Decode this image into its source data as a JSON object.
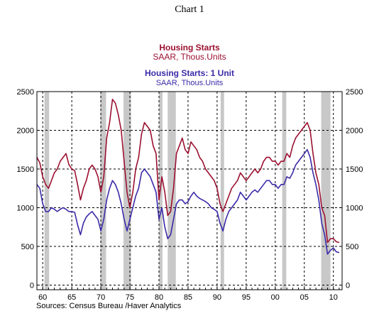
{
  "title": "Chart 1",
  "source": "Sources:  Census Bureau /Haver Analytics",
  "chart_data": {
    "type": "line",
    "x_tick_labels": [
      "60",
      "65",
      "70",
      "75",
      "80",
      "85",
      "90",
      "95",
      "00",
      "05",
      "10"
    ],
    "x_ticks": [
      1960,
      1965,
      1970,
      1975,
      1980,
      1985,
      1990,
      1995,
      2000,
      2005,
      2010
    ],
    "xlim": [
      1959.0,
      2011.5
    ],
    "y_ticks": [
      0,
      500,
      1000,
      1500,
      2000,
      2500
    ],
    "y_tick_labels": [
      "0",
      "500",
      "1000",
      "1500",
      "2000",
      "2500"
    ],
    "ylim": [
      -60,
      2500
    ],
    "grid": "dashed vertical lines at x ticks; dashed horizontal lines at y ticks",
    "legend_position": "top-center",
    "recession_shading": [
      [
        1960.3,
        1961.1
      ],
      [
        1969.9,
        1970.9
      ],
      [
        1973.9,
        1975.2
      ],
      [
        1980.0,
        1980.6
      ],
      [
        1981.5,
        1982.9
      ],
      [
        1990.6,
        1991.2
      ],
      [
        2001.2,
        2001.9
      ],
      [
        2007.9,
        2009.5
      ]
    ],
    "series": [
      {
        "name": "Housing Starts",
        "unit": "SAAR, Thous.Units",
        "color": "#9b1030",
        "x": [
          1959.0,
          1959.5,
          1960.0,
          1960.5,
          1961.0,
          1961.5,
          1962.0,
          1962.5,
          1963.0,
          1963.5,
          1964.0,
          1964.5,
          1965.0,
          1965.5,
          1966.0,
          1966.5,
          1967.0,
          1967.5,
          1968.0,
          1968.5,
          1969.0,
          1969.5,
          1970.0,
          1970.5,
          1971.0,
          1971.5,
          1972.0,
          1972.5,
          1973.0,
          1973.5,
          1974.0,
          1974.5,
          1975.0,
          1975.5,
          1976.0,
          1976.5,
          1977.0,
          1977.5,
          1978.0,
          1978.5,
          1979.0,
          1979.5,
          1980.0,
          1980.5,
          1981.0,
          1981.5,
          1982.0,
          1982.5,
          1983.0,
          1983.5,
          1984.0,
          1984.5,
          1985.0,
          1985.5,
          1986.0,
          1986.5,
          1987.0,
          1987.5,
          1988.0,
          1988.5,
          1989.0,
          1989.5,
          1990.0,
          1990.5,
          1991.0,
          1991.5,
          1992.0,
          1992.5,
          1993.0,
          1993.5,
          1994.0,
          1994.5,
          1995.0,
          1995.5,
          1996.0,
          1996.5,
          1997.0,
          1997.5,
          1998.0,
          1998.5,
          1999.0,
          1999.5,
          2000.0,
          2000.5,
          2001.0,
          2001.5,
          2002.0,
          2002.5,
          2003.0,
          2003.5,
          2004.0,
          2004.5,
          2005.0,
          2005.5,
          2006.0,
          2006.5,
          2007.0,
          2007.5,
          2008.0,
          2008.5,
          2009.0,
          2009.5,
          2010.0,
          2010.5,
          2011.0
        ],
        "values": [
          1650,
          1580,
          1400,
          1300,
          1250,
          1350,
          1450,
          1500,
          1600,
          1650,
          1700,
          1560,
          1500,
          1480,
          1300,
          1100,
          1250,
          1350,
          1500,
          1550,
          1500,
          1400,
          1200,
          1400,
          1900,
          2100,
          2400,
          2350,
          2200,
          2000,
          1600,
          1200,
          1000,
          1200,
          1500,
          1650,
          1950,
          2100,
          2050,
          2000,
          1800,
          1700,
          1100,
          1400,
          1200,
          900,
          950,
          1250,
          1700,
          1800,
          1900,
          1750,
          1700,
          1850,
          1800,
          1750,
          1650,
          1600,
          1500,
          1450,
          1400,
          1350,
          1250,
          1050,
          950,
          1050,
          1150,
          1250,
          1300,
          1350,
          1450,
          1400,
          1350,
          1400,
          1450,
          1500,
          1450,
          1500,
          1600,
          1650,
          1650,
          1600,
          1600,
          1550,
          1600,
          1600,
          1700,
          1650,
          1800,
          1900,
          1950,
          2000,
          2050,
          2100,
          2000,
          1700,
          1450,
          1300,
          1000,
          900,
          550,
          600,
          600,
          560,
          550
        ]
      },
      {
        "name": "Housing Starts: 1  Unit",
        "unit": "SAAR, Thous.Units",
        "color": "#3a2aa8",
        "x": [
          1959.0,
          1959.5,
          1960.0,
          1960.5,
          1961.0,
          1961.5,
          1962.0,
          1962.5,
          1963.0,
          1963.5,
          1964.0,
          1964.5,
          1965.0,
          1965.5,
          1966.0,
          1966.5,
          1967.0,
          1967.5,
          1968.0,
          1968.5,
          1969.0,
          1969.5,
          1970.0,
          1970.5,
          1971.0,
          1971.5,
          1972.0,
          1972.5,
          1973.0,
          1973.5,
          1974.0,
          1974.5,
          1975.0,
          1975.5,
          1976.0,
          1976.5,
          1977.0,
          1977.5,
          1978.0,
          1978.5,
          1979.0,
          1979.5,
          1980.0,
          1980.5,
          1981.0,
          1981.5,
          1982.0,
          1982.5,
          1983.0,
          1983.5,
          1984.0,
          1984.5,
          1985.0,
          1985.5,
          1986.0,
          1986.5,
          1987.0,
          1987.5,
          1988.0,
          1988.5,
          1989.0,
          1989.5,
          1990.0,
          1990.5,
          1991.0,
          1991.5,
          1992.0,
          1992.5,
          1993.0,
          1993.5,
          1994.0,
          1994.5,
          1995.0,
          1995.5,
          1996.0,
          1996.5,
          1997.0,
          1997.5,
          1998.0,
          1998.5,
          1999.0,
          1999.5,
          2000.0,
          2000.5,
          2001.0,
          2001.5,
          2002.0,
          2002.5,
          2003.0,
          2003.5,
          2004.0,
          2004.5,
          2005.0,
          2005.5,
          2006.0,
          2006.5,
          2007.0,
          2007.5,
          2008.0,
          2008.5,
          2009.0,
          2009.5,
          2010.0,
          2010.5,
          2011.0
        ],
        "values": [
          1300,
          1250,
          1050,
          950,
          950,
          1000,
          980,
          950,
          980,
          1000,
          980,
          950,
          950,
          940,
          780,
          650,
          800,
          880,
          920,
          950,
          900,
          850,
          700,
          850,
          1100,
          1250,
          1350,
          1300,
          1200,
          1050,
          850,
          700,
          850,
          1000,
          1150,
          1250,
          1450,
          1500,
          1450,
          1400,
          1300,
          1200,
          850,
          1000,
          750,
          600,
          650,
          850,
          1050,
          1100,
          1100,
          1050,
          1080,
          1150,
          1200,
          1150,
          1120,
          1100,
          1080,
          1050,
          1000,
          980,
          950,
          800,
          700,
          850,
          950,
          1000,
          1050,
          1100,
          1200,
          1150,
          1100,
          1150,
          1200,
          1230,
          1200,
          1250,
          1300,
          1350,
          1350,
          1300,
          1300,
          1250,
          1300,
          1300,
          1400,
          1380,
          1450,
          1550,
          1600,
          1650,
          1700,
          1750,
          1650,
          1450,
          1300,
          1100,
          800,
          650,
          400,
          450,
          480,
          430,
          420
        ]
      }
    ]
  }
}
